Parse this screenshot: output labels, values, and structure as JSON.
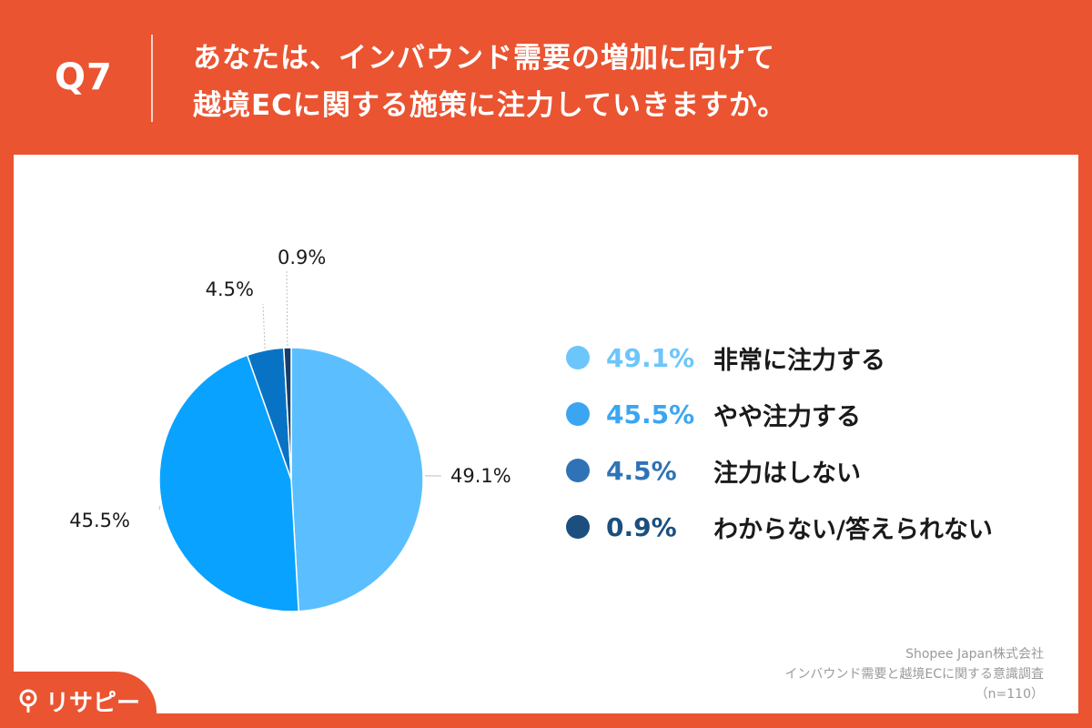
{
  "header": {
    "question_label": "Q7",
    "title_line1": "あなたは、インバウンド需要の増加に向けて",
    "title_line2": "越境ECに関する施策に注力していきますか。"
  },
  "chart_data": {
    "type": "pie",
    "slices": [
      {
        "label": "非常に注力する",
        "value": 49.1,
        "display": "49.1%",
        "color": "#5bbfff"
      },
      {
        "label": "やや注力する",
        "value": 45.5,
        "display": "45.5%",
        "color": "#0aa2ff"
      },
      {
        "label": "注力はしない",
        "value": 4.5,
        "display": "4.5%",
        "color": "#0873c4"
      },
      {
        "label": "わからない/答えられない",
        "value": 0.9,
        "display": "0.9%",
        "color": "#173e6a"
      }
    ]
  },
  "legend": {
    "items": [
      {
        "value": "49.1%",
        "label": "非常に注力する",
        "color": "#6cc6fb"
      },
      {
        "value": "45.5%",
        "label": "やや注力する",
        "color": "#3aa6f2"
      },
      {
        "value": "4.5%",
        "label": "注力はしない",
        "color": "#2f73b6"
      },
      {
        "value": "0.9%",
        "label": "わからない/答えられない",
        "color": "#1c4f7e"
      }
    ]
  },
  "source": {
    "company": "Shopee Japan株式会社",
    "survey": "インバウンド需要と越境ECに関する意識調査",
    "sample": "（n=110）"
  },
  "logo": {
    "text": "リサピー"
  }
}
